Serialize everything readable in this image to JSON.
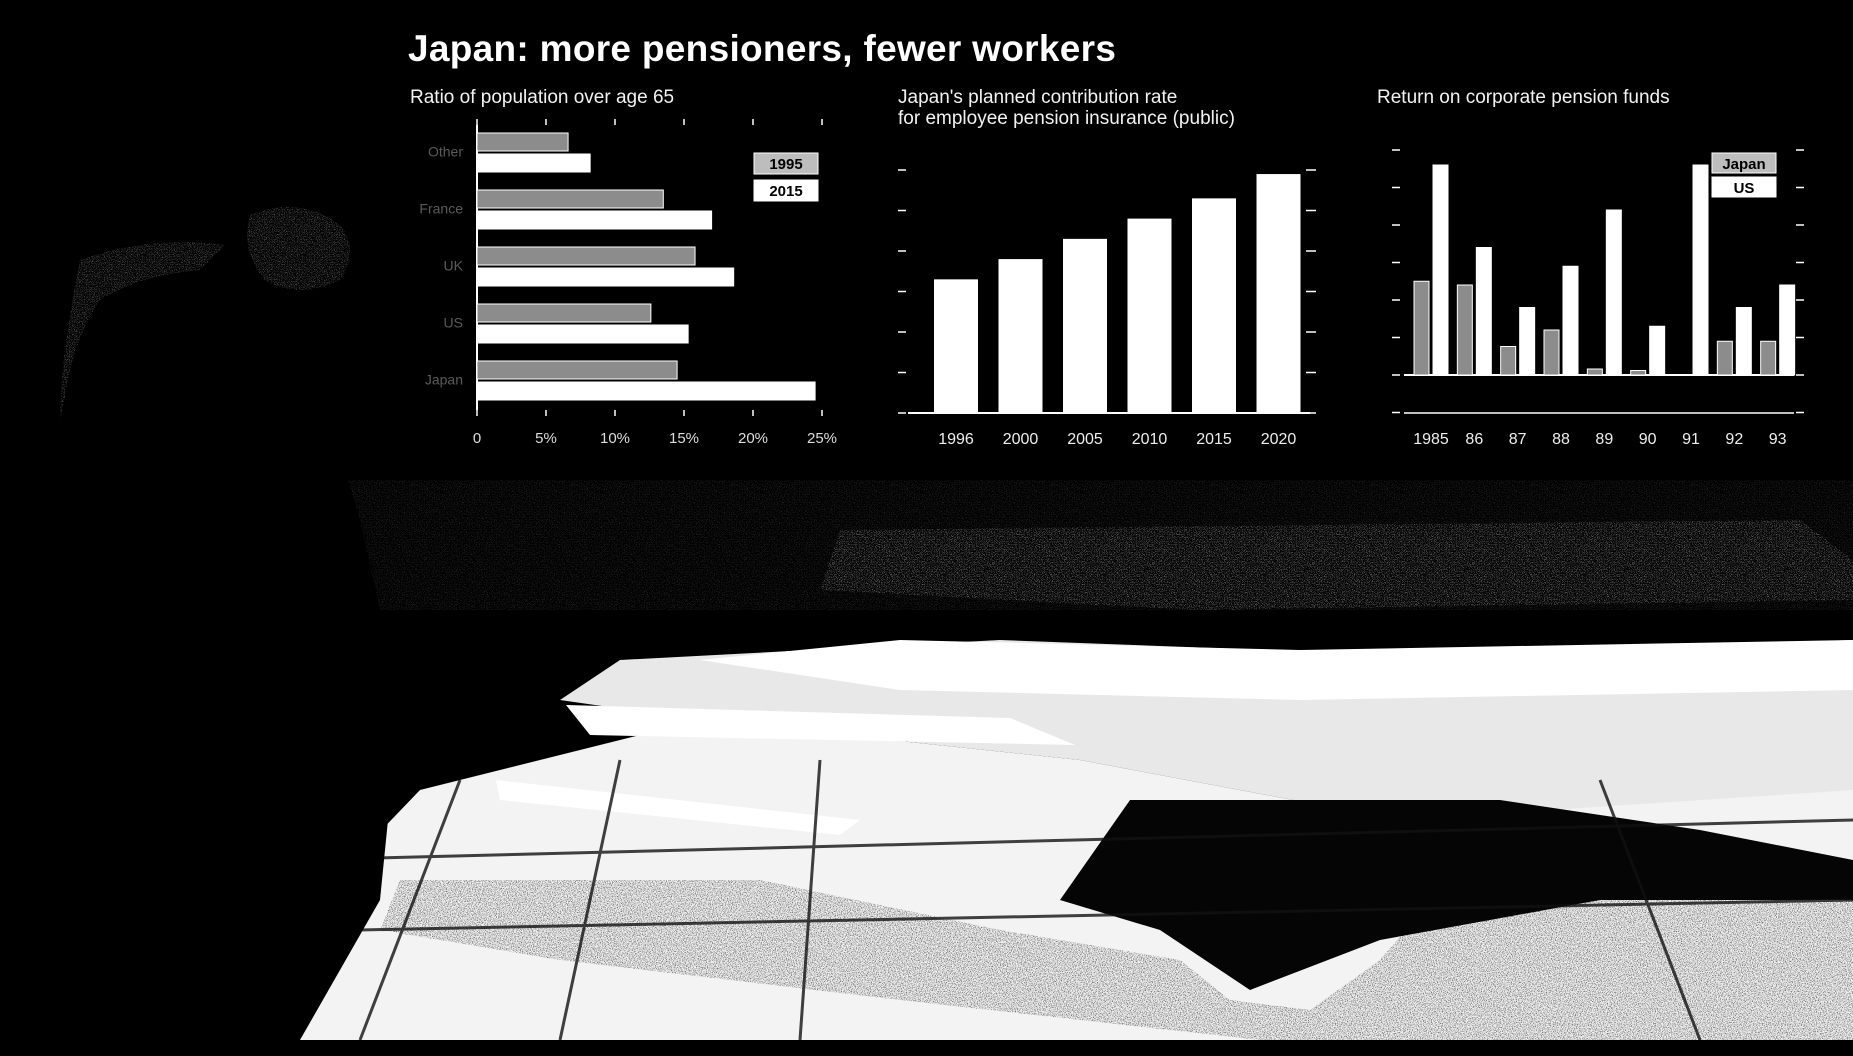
{
  "main_title": "Japan: more pensioners, fewer workers",
  "source_note": "",
  "colors": {
    "background": "#000000",
    "foreground": "#ffffff",
    "light_bar_fill": "#ffffff",
    "dark_bar_fill": "#8c8c8c"
  },
  "chart_data": [
    {
      "type": "bar",
      "orientation": "horizontal",
      "title": "Ratio of population over age 65",
      "categories": [
        "Japan",
        "US",
        "UK",
        "France",
        "Other"
      ],
      "series": [
        {
          "name": "1995",
          "values": [
            14.5,
            12.6,
            15.8,
            13.5,
            6.6
          ]
        },
        {
          "name": "2015",
          "values": [
            24.5,
            15.3,
            18.6,
            17.0,
            8.2
          ]
        }
      ],
      "xlim": [
        0,
        25
      ],
      "xticks": [
        "0",
        "5%",
        "10%",
        "15%",
        "20%",
        "25%"
      ],
      "legend_position": "top-right"
    },
    {
      "type": "bar",
      "title": "Japan's planned contribution rate\nfor employee pension insurance (public)",
      "categories": [
        "1996",
        "2000",
        "2005",
        "2010",
        "2015",
        "2020"
      ],
      "values": [
        16.5,
        19.0,
        21.5,
        24.0,
        26.5,
        29.5
      ],
      "ylim": [
        0,
        30
      ]
    },
    {
      "type": "bar",
      "title": "Return on corporate pension funds",
      "categories": [
        "1985",
        "86",
        "87",
        "88",
        "89",
        "90",
        "91",
        "92",
        "93"
      ],
      "series": [
        {
          "name": "Japan",
          "values": [
            12.5,
            12.0,
            3.8,
            6.0,
            0.8,
            0.6,
            0.0,
            4.5,
            4.5
          ]
        },
        {
          "name": "US",
          "values": [
            28.0,
            17.0,
            9.0,
            14.5,
            22.0,
            6.5,
            28.0,
            9.0,
            12.0
          ]
        }
      ],
      "ylim": [
        -5,
        30
      ],
      "legend_position": "top-right"
    }
  ]
}
